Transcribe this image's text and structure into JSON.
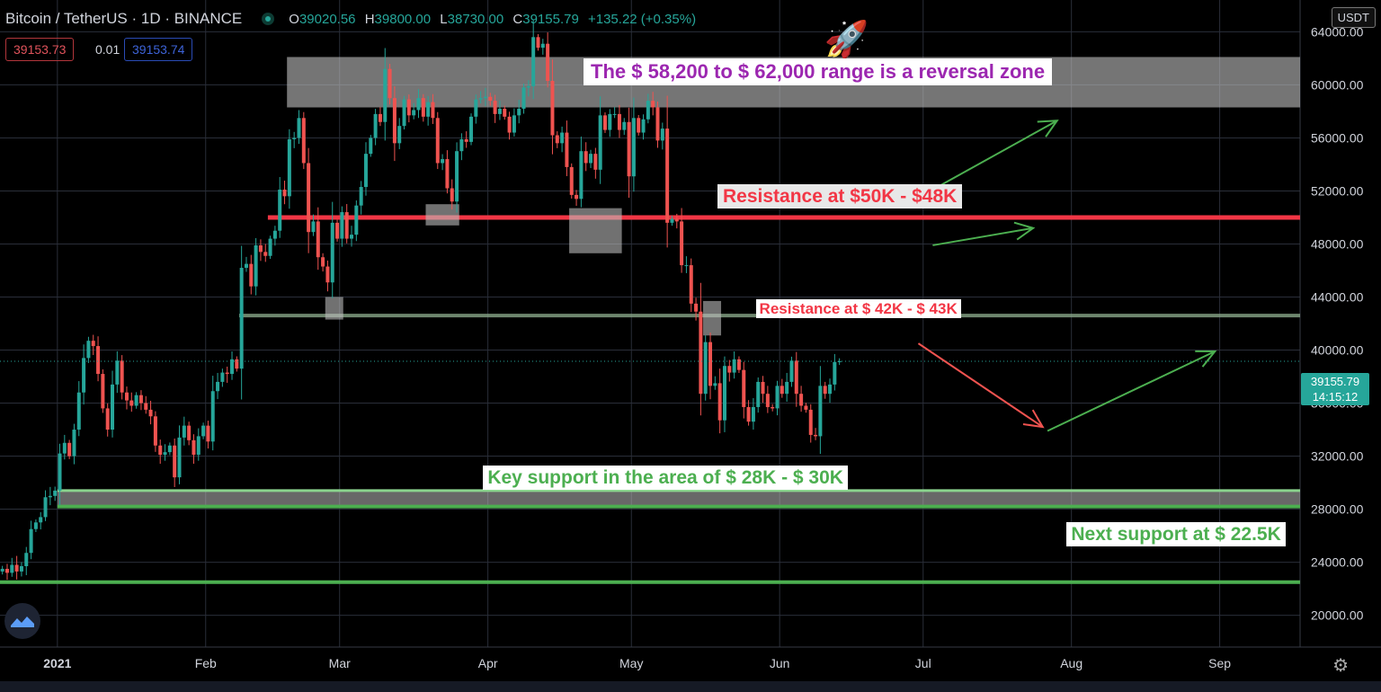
{
  "header": {
    "title": "Bitcoin / TetherUS · 1D · BINANCE",
    "ohlc": {
      "o_label": "O",
      "o": "39020.56",
      "h_label": "H",
      "h": "39800.00",
      "l_label": "L",
      "l": "38730.00",
      "c_label": "C",
      "c": "39155.79",
      "change": "+135.22 (+0.35%)"
    },
    "bid": "39153.73",
    "spread": "0.01",
    "ask": "39153.74",
    "currency": "USDT",
    "last_price": "39155.79",
    "countdown": "14:15:12"
  },
  "colors": {
    "up": "#26a69a",
    "down": "#ef5350",
    "grid": "#2a2e39",
    "zone": "#bdbdbd",
    "support": "#4caf50",
    "resistance": "#f23645"
  },
  "chart_data": {
    "type": "candlestick",
    "xlabel": "",
    "ylabel": "",
    "ylim": [
      17600,
      66400
    ],
    "xlim": [
      "2020-12-20",
      "2021-09-18"
    ],
    "grid": true,
    "y_ticks": [
      "20000.00",
      "24000.00",
      "28000.00",
      "32000.00",
      "36000.00",
      "40000.00",
      "44000.00",
      "48000.00",
      "52000.00",
      "56000.00",
      "60000.00",
      "64000.00"
    ],
    "x_ticks": [
      {
        "date": "2021-01-01",
        "label": "2021"
      },
      {
        "date": "2021-02-01",
        "label": "Feb"
      },
      {
        "date": "2021-03-01",
        "label": "Mar"
      },
      {
        "date": "2021-04-01",
        "label": "Apr"
      },
      {
        "date": "2021-05-01",
        "label": "May"
      },
      {
        "date": "2021-06-01",
        "label": "Jun"
      },
      {
        "date": "2021-07-01",
        "label": "Jul"
      },
      {
        "date": "2021-08-01",
        "label": "Aug"
      },
      {
        "date": "2021-09-01",
        "label": "Sep"
      }
    ],
    "close_series": {
      "start_date": "2020-12-20",
      "interval": "1D",
      "values": [
        23500,
        23200,
        23800,
        23300,
        23700,
        24700,
        26500,
        27000,
        27400,
        28900,
        29000,
        29400,
        32200,
        33000,
        32000,
        34000,
        36800,
        39400,
        40700,
        40300,
        38200,
        35600,
        34000,
        37400,
        39200,
        36800,
        36200,
        35800,
        36600,
        36000,
        35500,
        35000,
        32800,
        32100,
        32300,
        32800,
        30400,
        33400,
        34300,
        33200,
        32100,
        33500,
        34300,
        33100,
        36900,
        37600,
        38300,
        38200,
        39300,
        38600,
        46200,
        46500,
        44800,
        47900,
        47400,
        47100,
        48400,
        49000,
        52100,
        51600,
        55900,
        56000,
        57500,
        54100,
        48900,
        49700,
        47000,
        46300,
        45100,
        49600,
        48400,
        50400,
        48400,
        48700,
        50900,
        52300,
        54800,
        56000,
        57800,
        57200,
        61200,
        59000,
        55600,
        56900,
        58900,
        57700,
        58100,
        59000,
        57600,
        58700,
        57500,
        54100,
        54400,
        52200,
        51200,
        55000,
        55900,
        55700,
        57600,
        58900,
        59000,
        59100,
        58800,
        57800,
        58200,
        57600,
        56400,
        57700,
        58200,
        59800,
        59900,
        63600,
        62800,
        63100,
        60300,
        56200,
        55600,
        56400,
        53800,
        51700,
        51400,
        55000,
        54100,
        54800,
        53600,
        57700,
        56600,
        57800,
        57800,
        56600,
        57200,
        53100,
        57500,
        56400,
        57400,
        58800,
        58300,
        55800,
        56700,
        49600,
        49900,
        49700,
        46400,
        46400,
        43500,
        42900,
        36700,
        40600,
        37300,
        37500,
        34700,
        38800,
        38300,
        39300,
        38500,
        35700,
        34600,
        35700,
        37600,
        36700,
        35700,
        35600,
        37300,
        36700,
        37600,
        39200,
        36700,
        35800,
        35500,
        33600,
        33500,
        37300,
        36700,
        37400,
        39100,
        39155
      ]
    },
    "annotations": [
      {
        "kind": "zone",
        "from_date": "2021-02-18",
        "to_date": "2021-09-18",
        "y_low": 58300,
        "y_high": 62100,
        "label": "The $ 58,200 to $ 62,000 range is a reversal zone"
      },
      {
        "kind": "hline",
        "from_date": "2021-02-14",
        "y": 50000,
        "label": "Resistance at $50K - $48K"
      },
      {
        "kind": "hline",
        "from_date": "2021-02-08",
        "y": 42600,
        "label": "Resistance at $ 42K - $ 43K"
      },
      {
        "kind": "zone",
        "from_date": "2021-01-01",
        "to_date": "2021-09-18",
        "y_low": 28200,
        "y_high": 29400,
        "label": "Key support in the area of $ 28K - $ 30K"
      },
      {
        "kind": "hline",
        "from_date": "2020-12-20",
        "y": 22500,
        "label": "Next support at $ 22.5K"
      }
    ],
    "highlight_boxes": [
      {
        "from_date": "2021-03-19",
        "to_date": "2021-03-26",
        "y_low": 49400,
        "y_high": 51000
      },
      {
        "from_date": "2021-02-26",
        "to_date": "2021-03-01",
        "y_low": 42300,
        "y_high": 44000
      },
      {
        "from_date": "2021-04-18",
        "to_date": "2021-04-29",
        "y_low": 47300,
        "y_high": 50700
      },
      {
        "from_date": "2021-05-16",
        "to_date": "2021-05-19",
        "y_low": 41100,
        "y_high": 43700
      }
    ],
    "projection_arrows": [
      {
        "color": "#4caf50",
        "from": [
          "2021-07-03",
          52100
        ],
        "to": [
          "2021-07-29",
          57300
        ]
      },
      {
        "color": "#4caf50",
        "from": [
          "2021-07-03",
          47900
        ],
        "to": [
          "2021-07-24",
          49200
        ]
      },
      {
        "color": "#ef5350",
        "from": [
          "2021-06-30",
          40500
        ],
        "to": [
          "2021-07-26",
          34200
        ]
      },
      {
        "color": "#4caf50",
        "from": [
          "2021-07-27",
          33900
        ],
        "to": [
          "2021-08-31",
          39900
        ]
      }
    ],
    "emoji": {
      "glyph": "🚀",
      "at": [
        "2021-06-15",
        62500
      ]
    }
  }
}
